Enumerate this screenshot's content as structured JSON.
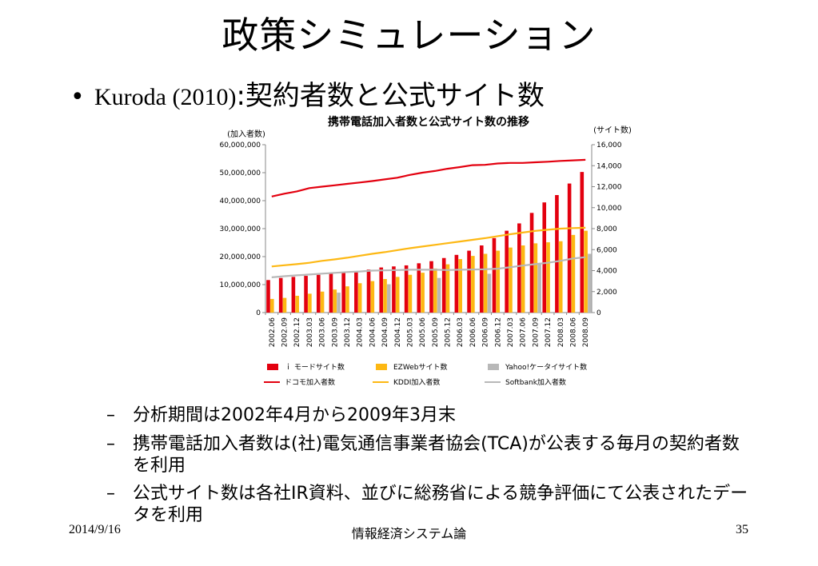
{
  "slide": {
    "title": "政策シミュレーション",
    "bullet_marker": "•",
    "bullet_serif": "Kuroda (2010)",
    "bullet_jp": ":契約者数と公式サイト数",
    "sub_bullets": [
      "分析期間は2002年4月から2009年3月末",
      "携帯電話加入者数は(社)電気通信事業者協会(TCA)が公表する毎月の契約者数を利用",
      "公式サイト数は各社IR資料、並びに総務省による競争評価にて公表されたデータを利用"
    ],
    "sub_marker": "–",
    "footer_date": "2014/9/16",
    "footer_center": "情報経済システム論",
    "footer_page": "35"
  },
  "chart_data": {
    "type": "bar",
    "title": "携帯電話加入者数と公式サイト数の推移",
    "y_left_label": "(加入者数)",
    "y_right_label": "(サイト数)",
    "y_left_lim": [
      0,
      60000000
    ],
    "y_right_lim": [
      0,
      16000
    ],
    "y_left_ticks": [
      "0",
      "10,000,000",
      "20,000,000",
      "30,000,000",
      "40,000,000",
      "50,000,000",
      "60,000,000"
    ],
    "y_right_ticks": [
      "0",
      "2,000",
      "4,000",
      "6,000",
      "8,000",
      "10,000",
      "12,000",
      "14,000",
      "16,000"
    ],
    "categories": [
      "2002.06",
      "2002.09",
      "2002.12",
      "2003.03",
      "2003.06",
      "2003.09",
      "2003.12",
      "2004.03",
      "2004.06",
      "2004.09",
      "2004.12",
      "2005.03",
      "2005.06",
      "2005.09",
      "2005.12",
      "2006.03",
      "2006.06",
      "2006.09",
      "2006.12",
      "2007.03",
      "2007.06",
      "2007.09",
      "2007.12",
      "2008.03",
      "2008.06",
      "2008.09"
    ],
    "bar_series": [
      {
        "name": "ｉ モードサイト数",
        "color": "#e3000f",
        "values": [
          3100,
          3300,
          3400,
          3500,
          3600,
          3700,
          3800,
          3900,
          4100,
          4300,
          4400,
          4500,
          4700,
          4900,
          5200,
          5500,
          5900,
          6400,
          7100,
          7800,
          8500,
          9500,
          10500,
          11200,
          12300,
          13400
        ]
      },
      {
        "name": "EZWebサイト数",
        "color": "#fdb813",
        "values": [
          1300,
          1400,
          1600,
          1800,
          2000,
          2200,
          2500,
          2800,
          3000,
          3200,
          3400,
          3600,
          3800,
          4200,
          4600,
          5100,
          5400,
          5600,
          5900,
          6200,
          6400,
          6600,
          6700,
          6800,
          7400,
          7800
        ]
      },
      {
        "name": "Yahoo!ケータイサイト数",
        "color": "#b8b8b8",
        "values": [
          null,
          null,
          null,
          null,
          null,
          1900,
          null,
          null,
          null,
          2700,
          null,
          null,
          null,
          3300,
          null,
          null,
          null,
          3700,
          null,
          null,
          null,
          4600,
          null,
          null,
          null,
          5600
        ]
      }
    ],
    "line_series": [
      {
        "name": "ドコモ加入者数",
        "color": "#e3000f",
        "values": [
          41500000,
          42500000,
          43300000,
          44500000,
          45000000,
          45500000,
          46000000,
          46500000,
          47000000,
          47600000,
          48200000,
          49200000,
          50000000,
          50600000,
          51400000,
          52000000,
          52700000,
          52800000,
          53300000,
          53500000,
          53500000,
          53700000,
          53900000,
          54200000,
          54400000,
          54600000
        ]
      },
      {
        "name": "KDDI加入者数",
        "color": "#fdb813",
        "values": [
          16500000,
          16900000,
          17300000,
          17800000,
          18500000,
          19000000,
          19600000,
          20300000,
          21000000,
          21600000,
          22300000,
          23000000,
          23600000,
          24200000,
          24800000,
          25400000,
          26000000,
          26600000,
          27300000,
          28000000,
          28600000,
          29200000,
          29600000,
          30000000,
          30200000,
          30300000
        ]
      },
      {
        "name": "Softbank加入者数",
        "color": "#b8b8b8",
        "values": [
          12600000,
          13000000,
          13300000,
          13600000,
          13900000,
          14200000,
          14500000,
          14700000,
          15000000,
          15100000,
          15200000,
          15300000,
          15300000,
          15300000,
          15200000,
          15300000,
          15400000,
          15500000,
          15700000,
          16200000,
          16800000,
          17300000,
          17800000,
          18500000,
          19300000,
          19800000
        ]
      }
    ],
    "legend": [
      "ｉ モードサイト数",
      "EZWebサイト数",
      "Yahoo!ケータイサイト数",
      "ドコモ加入者数",
      "KDDI加入者数",
      "Softbank加入者数"
    ],
    "legend_position": "bottom",
    "grid": false
  }
}
